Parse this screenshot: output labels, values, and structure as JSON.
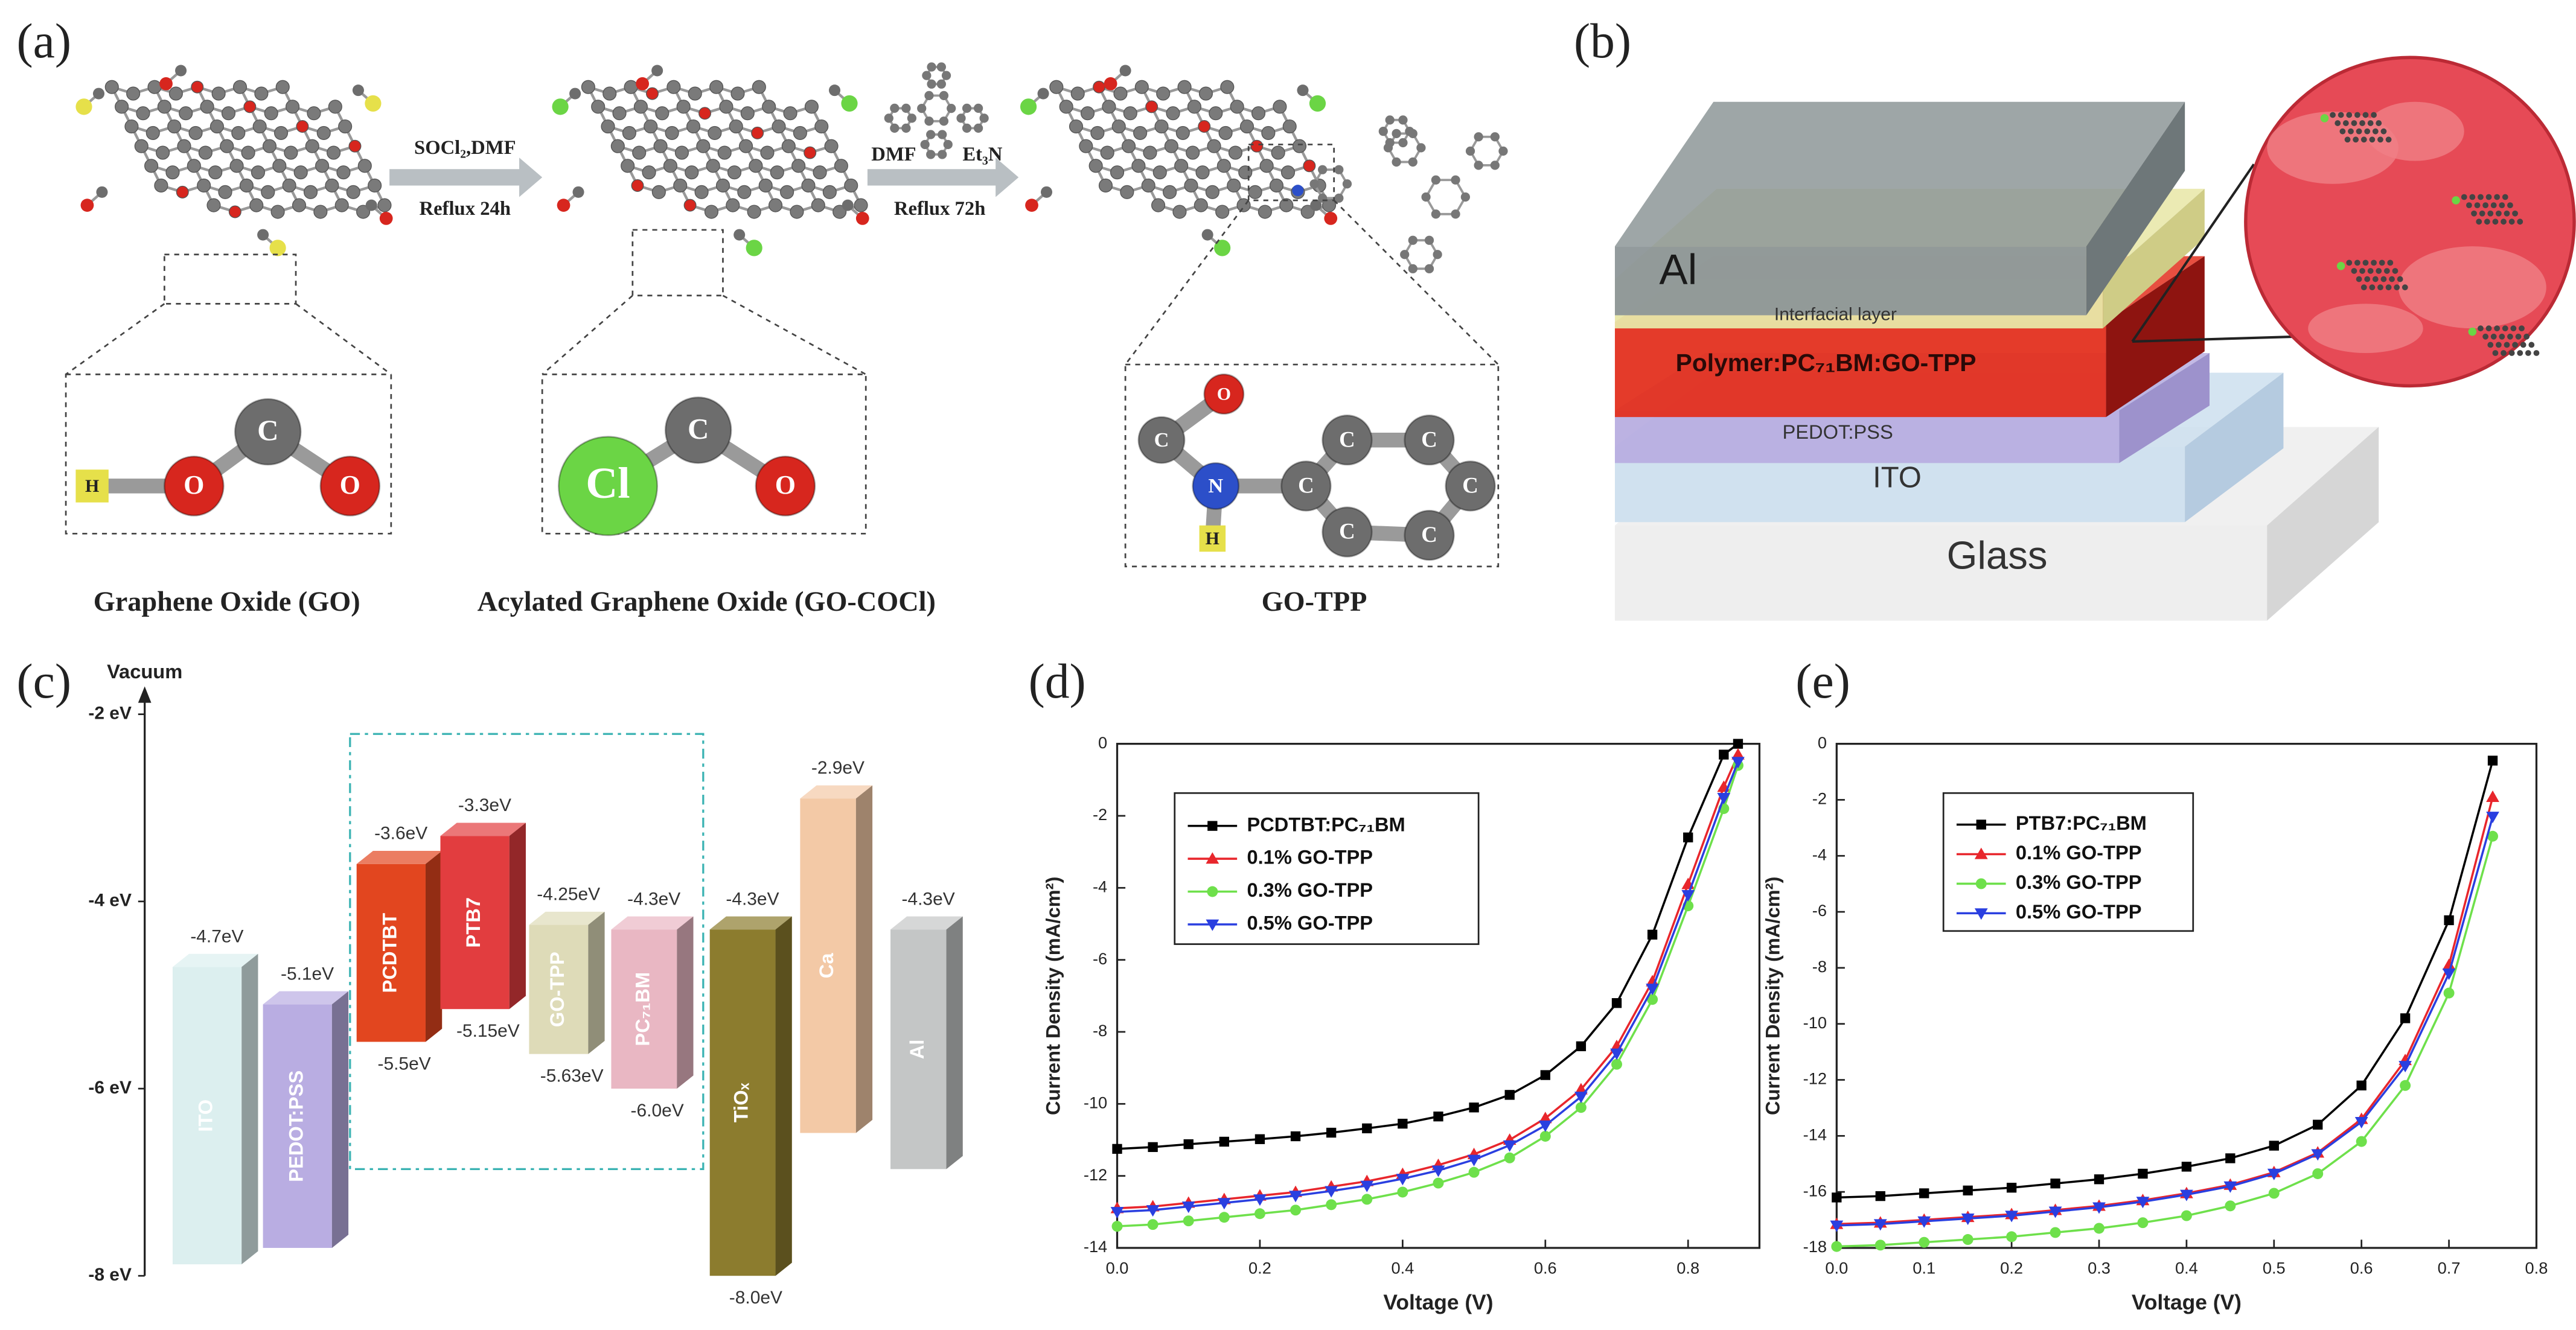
{
  "panel_a": {
    "label": "(a)",
    "step1": [
      "SOCl₂,DMF",
      "Reflux 24h"
    ],
    "step2": [
      "DMF",
      "Et₃N",
      "Reflux 72h"
    ],
    "captions": [
      "Graphene Oxide (GO)",
      "Acylated Graphene Oxide (GO-COCl)",
      "GO-TPP"
    ],
    "atoms": [
      [
        "H",
        "O",
        "C",
        "O"
      ],
      [
        "Cl",
        "C",
        "O"
      ],
      [
        "O",
        "C",
        "N",
        "H",
        "C",
        "C",
        "C",
        "C",
        "C",
        "C"
      ]
    ]
  },
  "panel_b": {
    "label": "(b)",
    "layers": [
      "Al",
      "Interfacial layer",
      "Polymer:PC₇₁BM:GO-TPP",
      "PEDOT:PSS",
      "ITO",
      "Glass"
    ]
  },
  "energy_diagram": {
    "label": "(c)",
    "axis_label": "Vacuum",
    "ylim": [
      -8,
      -2
    ],
    "yticks": [
      {
        "value": -2,
        "label": "-2 eV"
      },
      {
        "value": -4,
        "label": "-4 eV"
      },
      {
        "value": -6,
        "label": "-6 eV"
      },
      {
        "value": -8,
        "label": "-8 eV"
      }
    ],
    "levels": [
      {
        "name": "ITO",
        "color": "#dcefef",
        "values": [
          -4.7
        ],
        "value_labels": [
          "-4.7eV"
        ]
      },
      {
        "name": "PEDOT:PSS",
        "color": "#b9ade2",
        "values": [
          -5.1
        ],
        "value_labels": [
          "-5.1eV"
        ]
      },
      {
        "name": "PCDTBT",
        "color": "#e2461f",
        "values": [
          -3.6,
          -5.5
        ],
        "value_labels": [
          "-3.6eV",
          "-5.5eV"
        ]
      },
      {
        "name": "PTB7",
        "color": "#e23d3f",
        "values": [
          -3.3,
          -5.15
        ],
        "value_labels": [
          "-3.3eV",
          "-5.15eV"
        ]
      },
      {
        "name": "GO-TPP",
        "color": "#dedbb8",
        "values": [
          -4.25,
          -5.63
        ],
        "value_labels": [
          "-4.25eV",
          "-5.63eV"
        ]
      },
      {
        "name": "PC₇₁BM",
        "color": "#e9b7c3",
        "values": [
          -4.3,
          -6.0
        ],
        "value_labels": [
          "-4.3eV",
          "-6.0eV"
        ]
      },
      {
        "name": "TiOₓ",
        "color": "#8c7c2e",
        "values": [
          -4.3,
          -8.0
        ],
        "value_labels": [
          "-4.3eV",
          "-8.0eV"
        ]
      },
      {
        "name": "Ca",
        "color": "#f3c9a6",
        "values": [
          -2.9
        ],
        "value_labels": [
          "-2.9eV"
        ]
      },
      {
        "name": "Al",
        "color": "#c4c6c6",
        "values": [
          -4.3
        ],
        "value_labels": [
          "-4.3eV"
        ]
      }
    ]
  },
  "chart_data": [
    {
      "type": "line",
      "label": "(d)",
      "x_label": "Voltage (V)",
      "y_label": "Current Density (mA/cm²)",
      "x": [
        0,
        0.05,
        0.1,
        0.15,
        0.2,
        0.25,
        0.3,
        0.35,
        0.4,
        0.45,
        0.5,
        0.55,
        0.6,
        0.65,
        0.7,
        0.75,
        0.8,
        0.85,
        0.87
      ],
      "xlim": [
        0,
        0.9
      ],
      "xticks": [
        {
          "value": 0,
          "label": "0.0"
        },
        0.2,
        0.4,
        0.6,
        0.8
      ],
      "ylim": [
        -14,
        0
      ],
      "yticks": [
        -14,
        -12,
        -10,
        -8,
        -6,
        -4,
        -2,
        0
      ],
      "series": [
        {
          "name": "PCDTBT:PC₇₁BM",
          "color": "#000000",
          "marker": "square",
          "values": [
            -11.25,
            -11.2,
            -11.12,
            -11.05,
            -10.98,
            -10.9,
            -10.8,
            -10.68,
            -10.55,
            -10.35,
            -10.1,
            -9.75,
            -9.2,
            -8.4,
            -7.2,
            -5.3,
            -2.6,
            -0.3,
            0
          ]
        },
        {
          "name": "0.1% GO-TPP",
          "color": "#e8262c",
          "marker": "triangle-up",
          "values": [
            -12.9,
            -12.85,
            -12.75,
            -12.65,
            -12.55,
            -12.45,
            -12.3,
            -12.15,
            -11.95,
            -11.7,
            -11.4,
            -11.0,
            -10.4,
            -9.6,
            -8.4,
            -6.6,
            -3.9,
            -1.2,
            -0.3
          ]
        },
        {
          "name": "0.3% GO-TPP",
          "color": "#6ee04b",
          "marker": "circle",
          "values": [
            -13.4,
            -13.35,
            -13.25,
            -13.15,
            -13.05,
            -12.95,
            -12.8,
            -12.65,
            -12.45,
            -12.2,
            -11.9,
            -11.5,
            -10.9,
            -10.1,
            -8.9,
            -7.1,
            -4.5,
            -1.8,
            -0.6
          ]
        },
        {
          "name": "0.5% GO-TPP",
          "color": "#2a3fe0",
          "marker": "triangle-down",
          "values": [
            -13.0,
            -12.95,
            -12.85,
            -12.75,
            -12.65,
            -12.55,
            -12.42,
            -12.27,
            -12.08,
            -11.85,
            -11.55,
            -11.15,
            -10.6,
            -9.8,
            -8.6,
            -6.8,
            -4.2,
            -1.5,
            -0.5
          ]
        }
      ]
    },
    {
      "type": "line",
      "label": "(e)",
      "x_label": "Voltage (V)",
      "y_label": "Current Density (mA/cm²)",
      "x": [
        0,
        0.05,
        0.1,
        0.15,
        0.2,
        0.25,
        0.3,
        0.35,
        0.4,
        0.45,
        0.5,
        0.55,
        0.6,
        0.65,
        0.7,
        0.75
      ],
      "xlim": [
        0,
        0.8
      ],
      "xticks": [
        {
          "value": 0,
          "label": "0.0"
        },
        0.1,
        0.2,
        0.3,
        0.4,
        0.5,
        0.6,
        0.7,
        0.8
      ],
      "ylim": [
        -18,
        0
      ],
      "yticks": [
        -18,
        -16,
        -14,
        -12,
        -10,
        -8,
        -6,
        -4,
        -2,
        0
      ],
      "series": [
        {
          "name": "PTB7:PC₇₁BM",
          "color": "#000000",
          "marker": "square",
          "values": [
            -16.2,
            -16.15,
            -16.05,
            -15.95,
            -15.85,
            -15.7,
            -15.55,
            -15.35,
            -15.1,
            -14.8,
            -14.35,
            -13.6,
            -12.2,
            -9.8,
            -6.3,
            -0.6
          ]
        },
        {
          "name": "0.1% GO-TPP",
          "color": "#e8262c",
          "marker": "triangle-up",
          "values": [
            -17.15,
            -17.1,
            -17.0,
            -16.9,
            -16.8,
            -16.65,
            -16.5,
            -16.3,
            -16.05,
            -15.75,
            -15.3,
            -14.6,
            -13.4,
            -11.3,
            -7.9,
            -1.9
          ]
        },
        {
          "name": "0.3% GO-TPP",
          "color": "#6ee04b",
          "marker": "circle",
          "values": [
            -17.95,
            -17.9,
            -17.8,
            -17.7,
            -17.6,
            -17.45,
            -17.3,
            -17.1,
            -16.85,
            -16.5,
            -16.05,
            -15.35,
            -14.2,
            -12.2,
            -8.9,
            -3.3
          ]
        },
        {
          "name": "0.5% GO-TPP",
          "color": "#2a3fe0",
          "marker": "triangle-down",
          "values": [
            -17.2,
            -17.15,
            -17.05,
            -16.95,
            -16.85,
            -16.7,
            -16.55,
            -16.35,
            -16.1,
            -15.8,
            -15.35,
            -14.65,
            -13.5,
            -11.5,
            -8.2,
            -2.6
          ]
        }
      ]
    }
  ]
}
